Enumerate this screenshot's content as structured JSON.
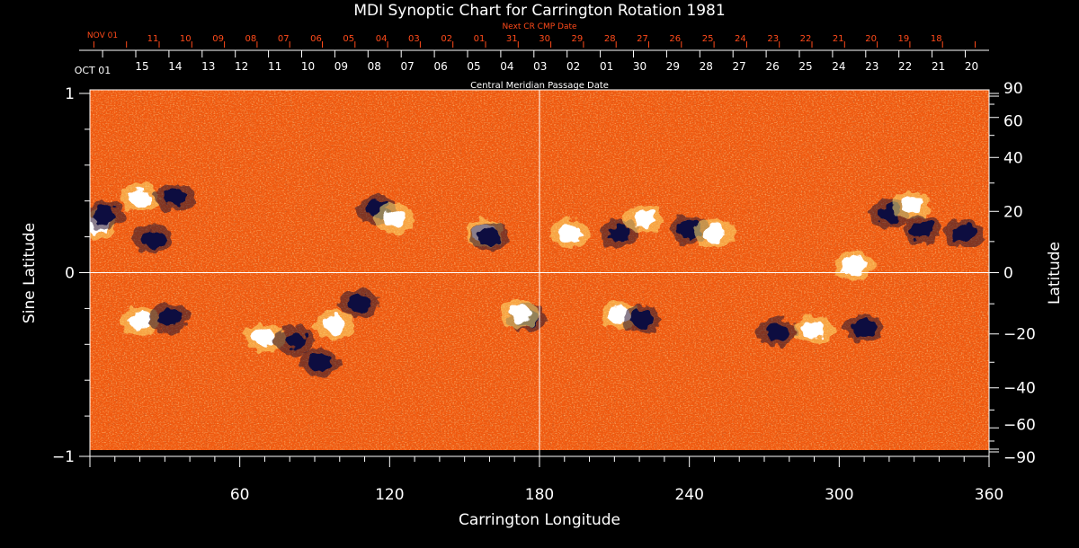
{
  "chart_data": {
    "type": "heatmap",
    "title": "MDI Synoptic Chart for Carrington Rotation 1981",
    "xlabel": "Carrington Longitude",
    "ylabel_left": "Sine Latitude",
    "ylabel_right": "Latitude",
    "xlim": [
      0,
      360
    ],
    "ylim": [
      -1,
      1
    ],
    "x_ticks": [
      {
        "value": 60,
        "label": "60"
      },
      {
        "value": 120,
        "label": "120"
      },
      {
        "value": 180,
        "label": "180"
      },
      {
        "value": 240,
        "label": "240"
      },
      {
        "value": 300,
        "label": "300"
      },
      {
        "value": 360,
        "label": "360"
      }
    ],
    "y_ticks_left": [
      {
        "value": 1,
        "label": "1"
      },
      {
        "value": 0,
        "label": "0"
      },
      {
        "value": -1,
        "label": "−1"
      }
    ],
    "y_ticks_right": [
      {
        "value": 90,
        "label": "90"
      },
      {
        "value": 60,
        "label": "60"
      },
      {
        "value": 40,
        "label": "40"
      },
      {
        "value": 20,
        "label": "20"
      },
      {
        "value": 0,
        "label": "0"
      },
      {
        "value": -20,
        "label": "−20"
      },
      {
        "value": -40,
        "label": "−40"
      },
      {
        "value": -60,
        "label": "−60"
      },
      {
        "value": -90,
        "label": "−90"
      }
    ],
    "cmp_axis": {
      "label": "Central Meridian Passage Date",
      "start_label": "OCT 01",
      "dates": [
        "15",
        "14",
        "13",
        "12",
        "11",
        "10",
        "09",
        "08",
        "07",
        "06",
        "05",
        "04",
        "03",
        "02",
        "01",
        "30",
        "29",
        "28",
        "27",
        "26",
        "25",
        "24",
        "23",
        "22",
        "21",
        "20"
      ]
    },
    "next_cmp_axis": {
      "label": "Next CR CMP Date",
      "start_label": "NOV 01",
      "dates": [
        "11",
        "10",
        "09",
        "08",
        "07",
        "06",
        "05",
        "04",
        "03",
        "02",
        "01",
        "31",
        "30",
        "29",
        "28",
        "27",
        "26",
        "25",
        "24",
        "23",
        "22",
        "21",
        "20",
        "19",
        "18"
      ]
    },
    "reference_lines": {
      "longitude": 180,
      "sine_latitude": 0
    },
    "active_regions": [
      {
        "lon": 3,
        "sinlat": 0.27,
        "polarity": "positive"
      },
      {
        "lon": 6,
        "sinlat": 0.32,
        "polarity": "negative"
      },
      {
        "lon": 20,
        "sinlat": 0.42,
        "polarity": "positive"
      },
      {
        "lon": 34,
        "sinlat": 0.42,
        "polarity": "negative"
      },
      {
        "lon": 25,
        "sinlat": 0.19,
        "polarity": "negative"
      },
      {
        "lon": 20,
        "sinlat": -0.27,
        "polarity": "positive"
      },
      {
        "lon": 32,
        "sinlat": -0.25,
        "polarity": "negative"
      },
      {
        "lon": 70,
        "sinlat": -0.36,
        "polarity": "positive"
      },
      {
        "lon": 82,
        "sinlat": -0.38,
        "polarity": "negative"
      },
      {
        "lon": 98,
        "sinlat": -0.29,
        "polarity": "positive"
      },
      {
        "lon": 108,
        "sinlat": -0.17,
        "polarity": "negative"
      },
      {
        "lon": 92,
        "sinlat": -0.5,
        "polarity": "negative"
      },
      {
        "lon": 115,
        "sinlat": 0.35,
        "polarity": "negative"
      },
      {
        "lon": 122,
        "sinlat": 0.3,
        "polarity": "positive"
      },
      {
        "lon": 158,
        "sinlat": 0.22,
        "polarity": "positive"
      },
      {
        "lon": 160,
        "sinlat": 0.2,
        "polarity": "negative"
      },
      {
        "lon": 175,
        "sinlat": -0.25,
        "polarity": "negative"
      },
      {
        "lon": 172,
        "sinlat": -0.23,
        "polarity": "positive"
      },
      {
        "lon": 192,
        "sinlat": 0.22,
        "polarity": "positive"
      },
      {
        "lon": 212,
        "sinlat": 0.22,
        "polarity": "negative"
      },
      {
        "lon": 222,
        "sinlat": 0.3,
        "polarity": "positive"
      },
      {
        "lon": 240,
        "sinlat": 0.24,
        "polarity": "negative"
      },
      {
        "lon": 250,
        "sinlat": 0.22,
        "polarity": "positive"
      },
      {
        "lon": 212,
        "sinlat": -0.24,
        "polarity": "positive"
      },
      {
        "lon": 221,
        "sinlat": -0.26,
        "polarity": "negative"
      },
      {
        "lon": 275,
        "sinlat": -0.33,
        "polarity": "negative"
      },
      {
        "lon": 290,
        "sinlat": -0.32,
        "polarity": "positive"
      },
      {
        "lon": 310,
        "sinlat": -0.31,
        "polarity": "negative"
      },
      {
        "lon": 320,
        "sinlat": 0.33,
        "polarity": "negative"
      },
      {
        "lon": 329,
        "sinlat": 0.38,
        "polarity": "positive"
      },
      {
        "lon": 333,
        "sinlat": 0.24,
        "polarity": "negative"
      },
      {
        "lon": 306,
        "sinlat": 0.04,
        "polarity": "positive"
      },
      {
        "lon": 350,
        "sinlat": 0.22,
        "polarity": "negative"
      }
    ],
    "colors": {
      "background": "#000000",
      "axes": "#ffffff",
      "title": "#ffffff",
      "next_cr_axis": "#ff4a1a",
      "field_base": "#f05a10",
      "field_dark": "#b32a08",
      "field_light": "#ff9a40",
      "positive_polarity": "#ffffff",
      "positive_halo": "#ffe070",
      "negative_polarity": "#101040",
      "negative_halo": "#2a1430"
    }
  }
}
